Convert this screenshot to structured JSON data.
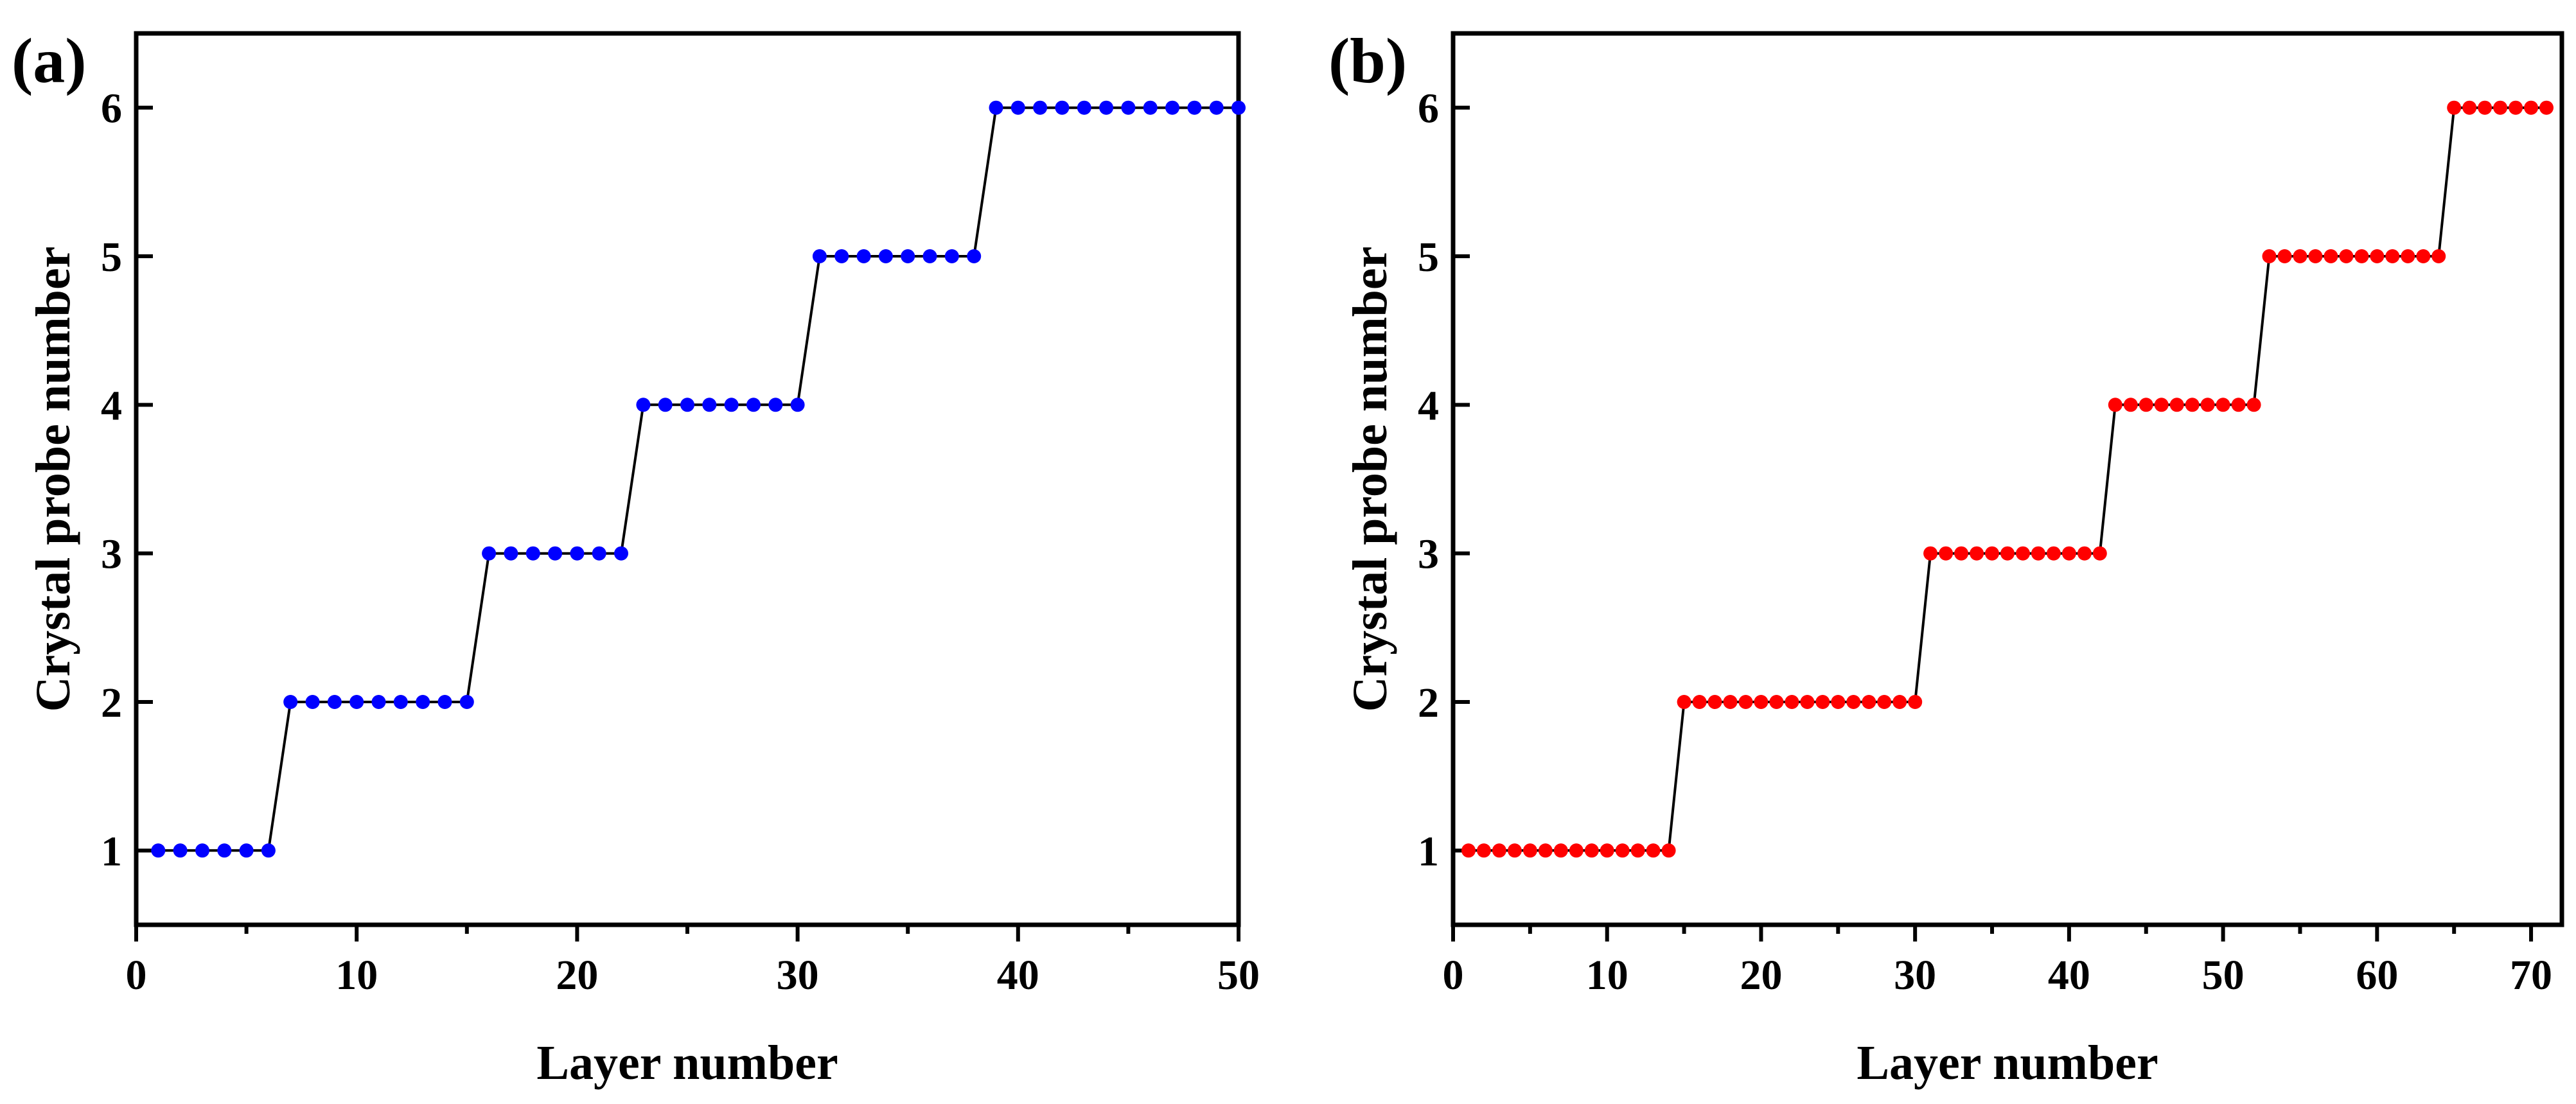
{
  "chart_data": [
    {
      "type": "line",
      "panel_label": "(a)",
      "xlabel": "Layer number",
      "ylabel": "Crystal probe number",
      "xlim": [
        0,
        50
      ],
      "ylim": [
        0.5,
        6.5
      ],
      "xticks": [
        0,
        10,
        20,
        30,
        40,
        50
      ],
      "yticks": [
        1,
        2,
        3,
        4,
        5,
        6
      ],
      "marker_color": "#0000ff",
      "line_color": "#000000",
      "steps": [
        {
          "value": 1,
          "from": 1,
          "to": 6
        },
        {
          "value": 2,
          "from": 7,
          "to": 15
        },
        {
          "value": 3,
          "from": 16,
          "to": 22
        },
        {
          "value": 4,
          "from": 23,
          "to": 30
        },
        {
          "value": 5,
          "from": 31,
          "to": 38
        },
        {
          "value": 6,
          "from": 39,
          "to": 50
        }
      ]
    },
    {
      "type": "line",
      "panel_label": "(b)",
      "xlabel": "Layer number",
      "ylabel": "Crystal probe number",
      "xlim": [
        0,
        72
      ],
      "ylim": [
        0.5,
        6.5
      ],
      "xticks": [
        0,
        10,
        20,
        30,
        40,
        50,
        60,
        70
      ],
      "yticks": [
        1,
        2,
        3,
        4,
        5,
        6
      ],
      "marker_color": "#ff0000",
      "line_color": "#000000",
      "steps": [
        {
          "value": 1,
          "from": 1,
          "to": 14
        },
        {
          "value": 2,
          "from": 15,
          "to": 30
        },
        {
          "value": 3,
          "from": 31,
          "to": 42
        },
        {
          "value": 4,
          "from": 43,
          "to": 52
        },
        {
          "value": 5,
          "from": 53,
          "to": 64
        },
        {
          "value": 6,
          "from": 65,
          "to": 71
        }
      ]
    }
  ]
}
